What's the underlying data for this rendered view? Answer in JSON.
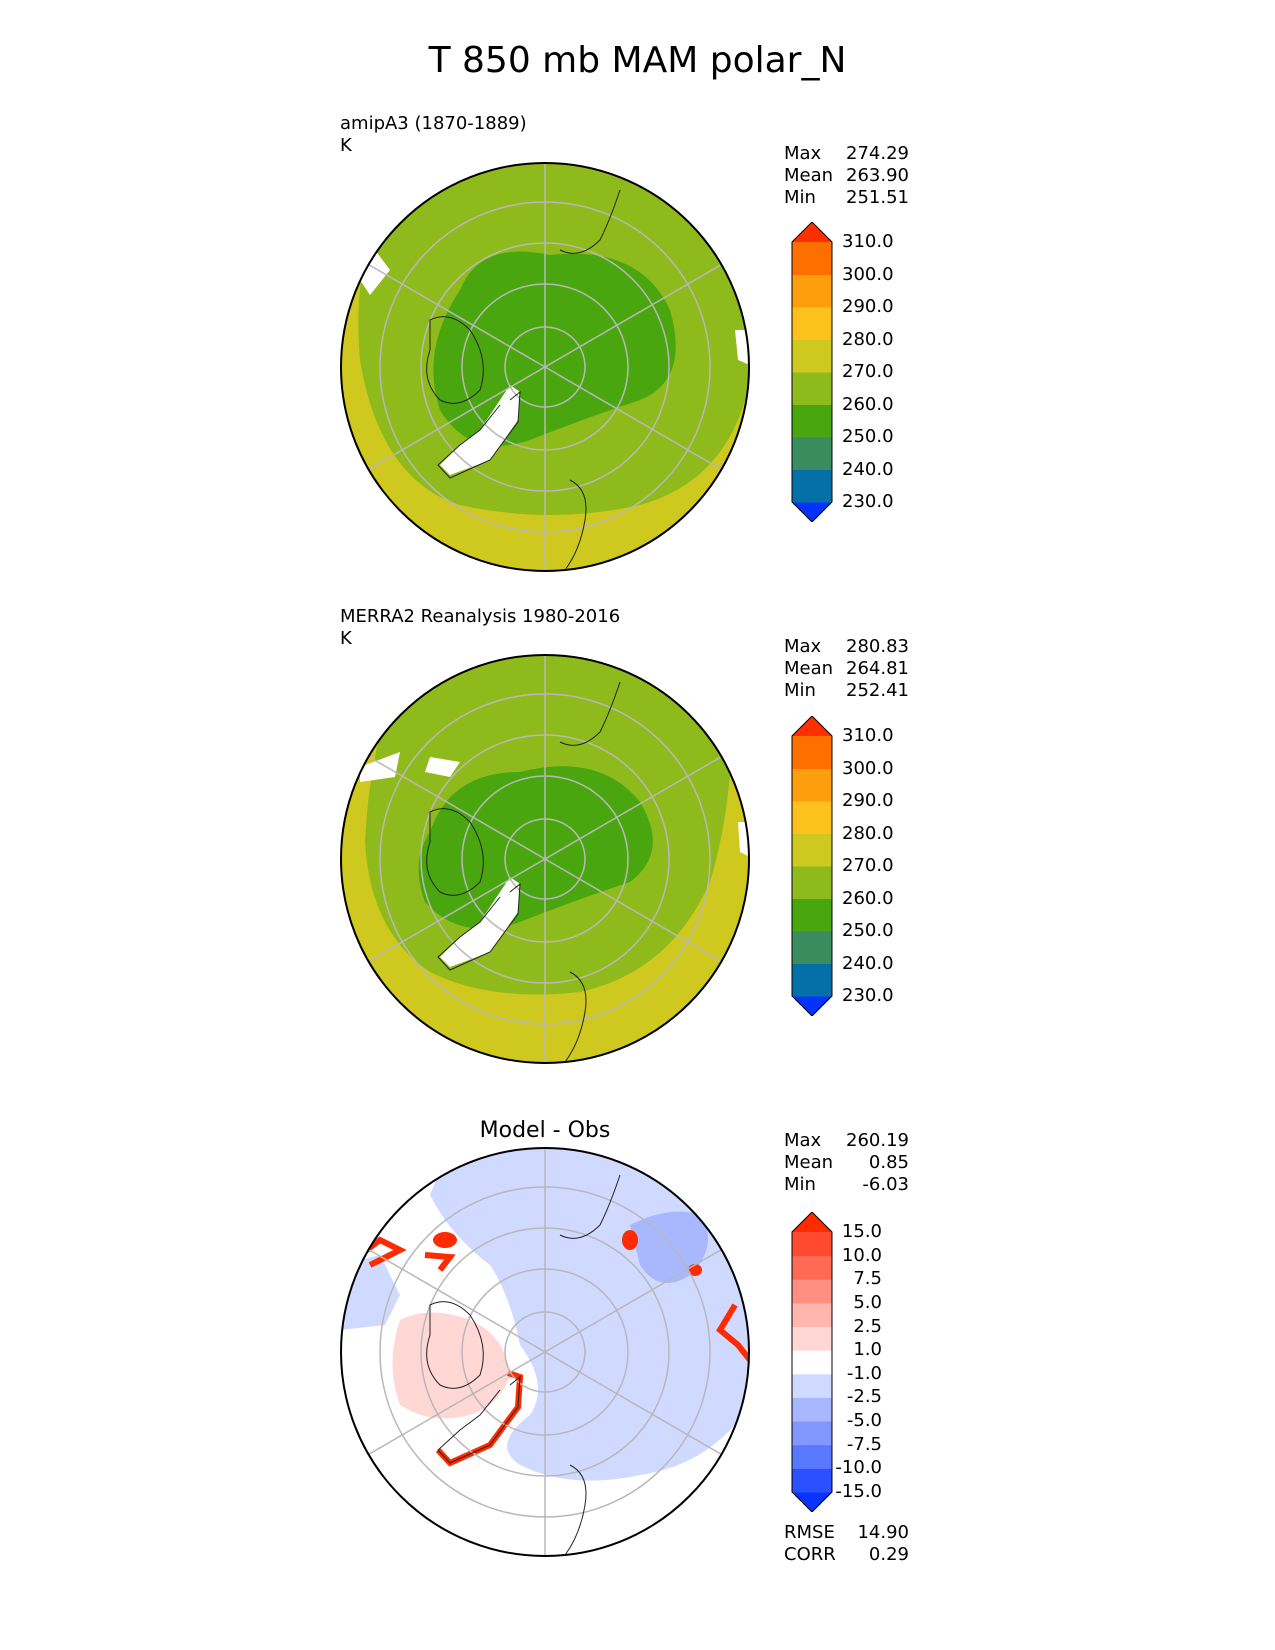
{
  "figure": {
    "title": "T 850 mb MAM polar_N"
  },
  "panels": [
    {
      "id": "test",
      "title_line1": "amipA3 (1870-1889)",
      "title_line2": "K",
      "stats": [
        {
          "label": "Max",
          "value": "274.29"
        },
        {
          "label": "Mean",
          "value": "263.90"
        },
        {
          "label": "Min",
          "value": "251.51"
        }
      ],
      "colorbar": {
        "colors": [
          "#0433ff",
          "#0570a8",
          "#3a8b5d",
          "#4aa60f",
          "#8fba1c",
          "#cfc81f",
          "#fcc11c",
          "#ff9e0d",
          "#ff6f00",
          "#ff2f00"
        ],
        "labels": [
          "230.0",
          "240.0",
          "250.0",
          "260.0",
          "270.0",
          "280.0",
          "290.0",
          "300.0",
          "310.0"
        ]
      }
    },
    {
      "id": "ref",
      "title_line1": "MERRA2 Reanalysis 1980-2016",
      "title_line2": "K",
      "stats": [
        {
          "label": "Max",
          "value": "280.83"
        },
        {
          "label": "Mean",
          "value": "264.81"
        },
        {
          "label": "Min",
          "value": "252.41"
        }
      ],
      "colorbar": {
        "colors": [
          "#0433ff",
          "#0570a8",
          "#3a8b5d",
          "#4aa60f",
          "#8fba1c",
          "#cfc81f",
          "#fcc11c",
          "#ff9e0d",
          "#ff6f00",
          "#ff2f00"
        ],
        "labels": [
          "230.0",
          "240.0",
          "250.0",
          "260.0",
          "270.0",
          "280.0",
          "290.0",
          "300.0",
          "310.0"
        ]
      }
    },
    {
      "id": "diff",
      "title": "Model - Obs",
      "stats": [
        {
          "label": "Max",
          "value": "260.19"
        },
        {
          "label": "Mean",
          "value": "0.85"
        },
        {
          "label": "Min",
          "value": "-6.03"
        }
      ],
      "metrics": [
        {
          "label": "RMSE",
          "value": "14.90"
        },
        {
          "label": "CORR",
          "value": "0.29"
        }
      ],
      "colorbar": {
        "colors": [
          "#0a33ff",
          "#2a50ff",
          "#5a78ff",
          "#8196ff",
          "#a9b7ff",
          "#d0d9ff",
          "#ffffff",
          "#ffd7d5",
          "#ffb6ad",
          "#ff8f80",
          "#ff6a55",
          "#ff4a30",
          "#ff2a00"
        ],
        "labels": [
          "-15.0",
          "-10.0",
          "-7.5",
          "-5.0",
          "-2.5",
          "-1.0",
          "1.0",
          "2.5",
          "5.0",
          "7.5",
          "10.0",
          "15.0"
        ]
      }
    }
  ],
  "chart_data": [
    {
      "type": "heatmap",
      "title": "amipA3 (1870-1889)",
      "units": "K",
      "projection": "north polar stereographic",
      "stats": {
        "max": 274.29,
        "mean": 263.9,
        "min": 251.51
      },
      "levels": [
        230,
        240,
        250,
        260,
        270,
        280,
        290,
        300,
        310
      ]
    },
    {
      "type": "heatmap",
      "title": "MERRA2 Reanalysis 1980-2016",
      "units": "K",
      "projection": "north polar stereographic",
      "stats": {
        "max": 280.83,
        "mean": 264.81,
        "min": 252.41
      },
      "levels": [
        230,
        240,
        250,
        260,
        270,
        280,
        290,
        300,
        310
      ]
    },
    {
      "type": "heatmap",
      "title": "Model - Obs",
      "projection": "north polar stereographic",
      "stats": {
        "max": 260.19,
        "mean": 0.85,
        "min": -6.03,
        "rmse": 14.9,
        "corr": 0.29
      },
      "levels": [
        -15,
        -10,
        -7.5,
        -5,
        -2.5,
        -1,
        1,
        2.5,
        5,
        7.5,
        10,
        15
      ]
    }
  ]
}
